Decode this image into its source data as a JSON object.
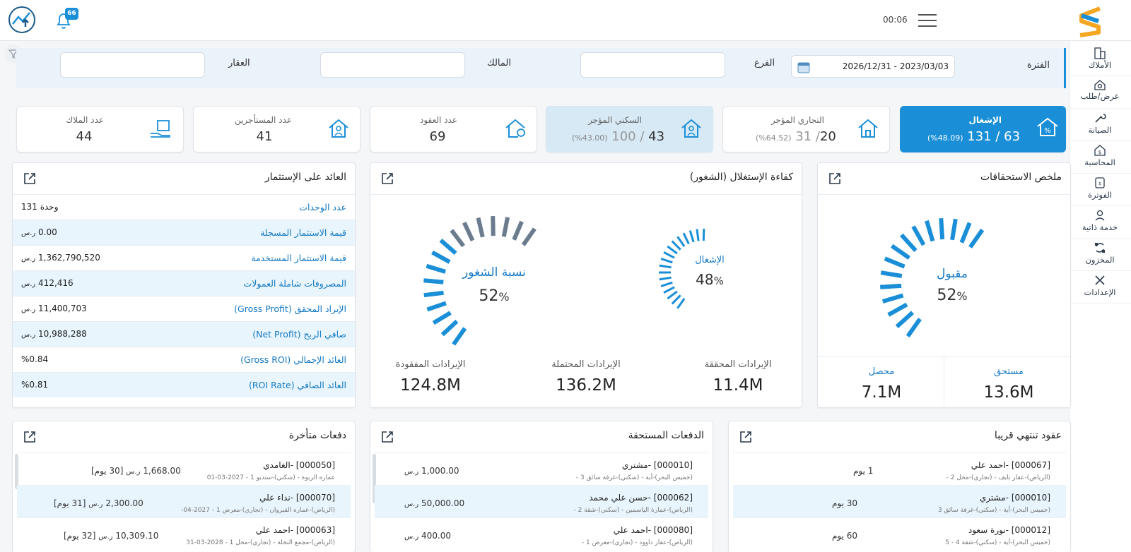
{
  "header": {
    "time": "00:06",
    "notif_count": "66"
  },
  "sidebar": {
    "items": [
      {
        "label": "الأملاك",
        "icon": "buildings-icon"
      },
      {
        "label": "عرض/طلب",
        "icon": "offer-icon"
      },
      {
        "label": "الصيانة",
        "icon": "wrench-icon"
      },
      {
        "label": "المحاسبة",
        "icon": "accounting-icon"
      },
      {
        "label": "الفوترة",
        "icon": "invoice-icon"
      },
      {
        "label": "خدمة ذاتية",
        "icon": "self-service-icon"
      },
      {
        "label": "المخزون",
        "icon": "inventory-icon"
      },
      {
        "label": "الإعدادات",
        "icon": "settings-icon"
      }
    ]
  },
  "filter": {
    "period_label": "الفترة",
    "period_value": "2026/12/31 - 2023/03/03",
    "branch_label": "الفرع",
    "owner_label": "المالك",
    "property_label": "العقار"
  },
  "cards": [
    {
      "title": "الإشغال",
      "value": "131 / 63",
      "sub": "(%48.09)"
    },
    {
      "title": "التجاري المؤجر",
      "value": "20",
      "total": "31 /",
      "sub": "(%64.52)"
    },
    {
      "title": "السكني المؤجر",
      "value": "43",
      "total": "100 /",
      "sub": "(%43.00)"
    },
    {
      "title": "عدد العقود",
      "value": "69"
    },
    {
      "title": "عدد المستأجرين",
      "value": "41"
    },
    {
      "title": "عدد الملاك",
      "value": "44"
    }
  ],
  "dues": {
    "title": "ملخص الاستحقاقات",
    "gauge_label": "مقبول",
    "gauge_value": "52",
    "pct": "%",
    "left_label": "محصل",
    "left_value": "7.1M",
    "right_label": "مستحق",
    "right_value": "13.6M"
  },
  "efficiency": {
    "title": "كفاءة الإستغلال (الشغور)",
    "occ_label": "الإشغال",
    "occ_value": "48",
    "vac_label": "نسبة الشغور",
    "vac_value": "52",
    "pct": "%",
    "stats": [
      {
        "label": "الإيرادات المحققة",
        "value": "11.4M"
      },
      {
        "label": "الإيرادات المحتملة",
        "value": "136.2M"
      },
      {
        "label": "الإيرادات المفقودة",
        "value": "124.8M"
      }
    ]
  },
  "roi": {
    "title": "العائد على الإستثمار",
    "rows": [
      {
        "k": "عدد الوحدات",
        "v": "131 وحدة"
      },
      {
        "k": "قيمة الاستثمار المسجلة",
        "v": "0.00",
        "u": "ر.س"
      },
      {
        "k": "قيمة الاستثمار المستخدمة",
        "v": "1,362,790,520",
        "u": "ر.س"
      },
      {
        "k": "المصروفات شاملة العمولات",
        "v": "412,416",
        "u": "ر.س"
      },
      {
        "k": "الإيراد المحقق (Gross Profit)",
        "v": "11,400,703",
        "u": "ر.س"
      },
      {
        "k": "صافي الربح (Net Profit)",
        "v": "10,988,288",
        "u": "ر.س"
      },
      {
        "k": "العائد الإجمالي (Gross ROI)",
        "v": "%0.84"
      },
      {
        "k": "العائد الصافي (ROI Rate)",
        "v": "%0.81"
      }
    ]
  },
  "expiring": {
    "title": "عقود تنتهي قريبا",
    "items": [
      {
        "n": "[000067] -احمد علي",
        "s": "(الرياض)-عقار نايف - (تجاري)-محل 2 -",
        "a": "1 يوم"
      },
      {
        "n": "[000010] -مشتري",
        "s": "(خميس البحر)-أية - (سكني)-غرفة سائق 3",
        "a": "30 يوم"
      },
      {
        "n": "[000012] -نورة سعود",
        "s": "(خميس البحر)-أية - (سكني)-شقة 4 - 5",
        "a": "60 يوم"
      }
    ]
  },
  "due_payments": {
    "title": "الدفعات المستحقة",
    "items": [
      {
        "n": "[000010] -مشتري",
        "s": "(خميس البحر)-أية - (سكني)-غرفة سائق 3 -",
        "a": "1,000.00",
        "u": "ر.س"
      },
      {
        "n": "[000062] -حسن علي محمد",
        "s": "(الرياض)-عمارة الياسمين - (سكني)-شقة 2 -",
        "a": "50,000.00",
        "u": "ر.س"
      },
      {
        "n": "[000080] -احمد علي",
        "s": "(الرياض)-عقار داوود - (تجاري)-معرض 1 -",
        "a": "400.00",
        "u": "ر.س"
      }
    ]
  },
  "late_payments": {
    "title": "دفعات متأخرة",
    "items": [
      {
        "n": "[000050] -الغامدي",
        "s": "عماره الربوة - (سكني)-ستديو 1 - 2027-03-01",
        "a": "1,668.00",
        "u": "ر.س",
        "d": "[30 يوم]"
      },
      {
        "n": "[000070] -نداء علي",
        "s": "(الرياض)-عماره القيروان - (تجاري)-معرض 1 - 2027-04-",
        "a": "2,300.00",
        "u": "ر.س",
        "d": "[31 يوم]"
      },
      {
        "n": "[000063] -احمد علي",
        "s": "(الرياض)-مجمع النخلة - (تجاري)-محل 1 - 2028-03-31",
        "a": "10,309.10",
        "u": "ر.س",
        "d": "[32 يوم]"
      }
    ]
  },
  "colors": {
    "accent": "#1a8fd8",
    "light": "#e8f5fc",
    "highlight_card": "#d6e9f4",
    "dark_gauge": "#6b7c8e"
  }
}
